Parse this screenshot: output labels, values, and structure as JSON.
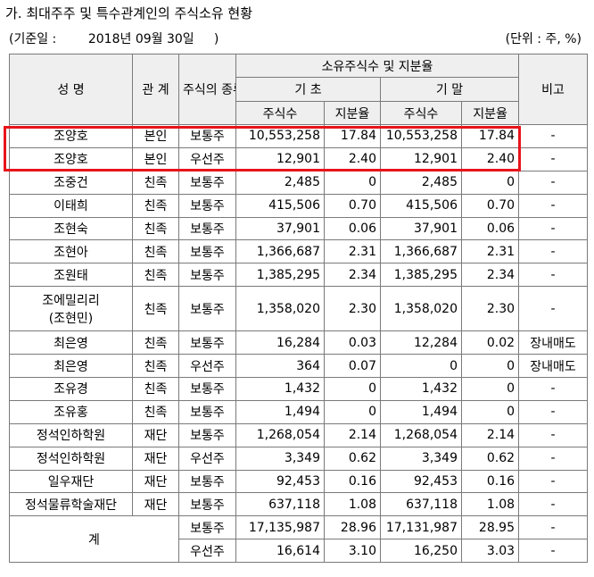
{
  "title": "가. 최대주주 및 특수관계인의 주식소유 현황",
  "base_date": "(기준일 :        2018년 09월 30일     )",
  "unit": "(단위 : 주, %)",
  "header": {
    "name": "성 명",
    "relation": "관 계",
    "stock_type": "주식의 종류",
    "ownership": "소유주식수 및 지분율",
    "begin": "기 초",
    "end": "기 말",
    "note": "비고",
    "shares": "주식수",
    "ratio": "지분율"
  },
  "rows": [
    {
      "name": "조양호",
      "relation": "본인",
      "type": "보통주",
      "begin_shares": "10,553,258",
      "begin_ratio": "17.84",
      "end_shares": "10,553,258",
      "end_ratio": "17.84",
      "note": "-"
    },
    {
      "name": "조양호",
      "relation": "본인",
      "type": "우선주",
      "begin_shares": "12,901",
      "begin_ratio": "2.40",
      "end_shares": "12,901",
      "end_ratio": "2.40",
      "note": "-"
    },
    {
      "name": "조중건",
      "relation": "친족",
      "type": "보통주",
      "begin_shares": "2,485",
      "begin_ratio": "0",
      "end_shares": "2,485",
      "end_ratio": "0",
      "note": "-"
    },
    {
      "name": "이태희",
      "relation": "친족",
      "type": "보통주",
      "begin_shares": "415,506",
      "begin_ratio": "0.70",
      "end_shares": "415,506",
      "end_ratio": "0.70",
      "note": "-"
    },
    {
      "name": "조현숙",
      "relation": "친족",
      "type": "보통주",
      "begin_shares": "37,901",
      "begin_ratio": "0.06",
      "end_shares": "37,901",
      "end_ratio": "0.06",
      "note": "-"
    },
    {
      "name": "조현아",
      "relation": "친족",
      "type": "보통주",
      "begin_shares": "1,366,687",
      "begin_ratio": "2.31",
      "end_shares": "1,366,687",
      "end_ratio": "2.31",
      "note": "-"
    },
    {
      "name": "조원태",
      "relation": "친족",
      "type": "보통주",
      "begin_shares": "1,385,295",
      "begin_ratio": "2.34",
      "end_shares": "1,385,295",
      "end_ratio": "2.34",
      "note": "-"
    },
    {
      "name": "조에밀리리",
      "name2": "(조현민)",
      "relation": "친족",
      "type": "보통주",
      "begin_shares": "1,358,020",
      "begin_ratio": "2.30",
      "end_shares": "1,358,020",
      "end_ratio": "2.30",
      "note": "-"
    },
    {
      "name": "최은영",
      "relation": "친족",
      "type": "보통주",
      "begin_shares": "16,284",
      "begin_ratio": "0.03",
      "end_shares": "12,284",
      "end_ratio": "0.02",
      "note": "장내매도"
    },
    {
      "name": "최은영",
      "relation": "친족",
      "type": "우선주",
      "begin_shares": "364",
      "begin_ratio": "0.07",
      "end_shares": "0",
      "end_ratio": "0",
      "note": "장내매도"
    },
    {
      "name": "조유경",
      "relation": "친족",
      "type": "보통주",
      "begin_shares": "1,432",
      "begin_ratio": "0",
      "end_shares": "1,432",
      "end_ratio": "0",
      "note": "-"
    },
    {
      "name": "조유홍",
      "relation": "친족",
      "type": "보통주",
      "begin_shares": "1,494",
      "begin_ratio": "0",
      "end_shares": "1,494",
      "end_ratio": "0",
      "note": "-"
    },
    {
      "name": "정석인하학원",
      "relation": "재단",
      "type": "보통주",
      "begin_shares": "1,268,054",
      "begin_ratio": "2.14",
      "end_shares": "1,268,054",
      "end_ratio": "2.14",
      "note": "-"
    },
    {
      "name": "정석인하학원",
      "relation": "재단",
      "type": "우선주",
      "begin_shares": "3,349",
      "begin_ratio": "0.62",
      "end_shares": "3,349",
      "end_ratio": "0.62",
      "note": "-"
    },
    {
      "name": "일우재단",
      "relation": "재단",
      "type": "보통주",
      "begin_shares": "92,453",
      "begin_ratio": "0.16",
      "end_shares": "92,453",
      "end_ratio": "0.16",
      "note": "-"
    },
    {
      "name": "정석물류학술재단",
      "relation": "재단",
      "type": "보통주",
      "begin_shares": "637,118",
      "begin_ratio": "1.08",
      "end_shares": "637,118",
      "end_ratio": "1.08",
      "note": "-"
    }
  ],
  "total": {
    "label": "계",
    "rows": [
      {
        "type": "보통주",
        "begin_shares": "17,135,987",
        "begin_ratio": "28.96",
        "end_shares": "17,131,987",
        "end_ratio": "28.95",
        "note": "-"
      },
      {
        "type": "우선주",
        "begin_shares": "16,614",
        "begin_ratio": "3.10",
        "end_shares": "16,250",
        "end_ratio": "3.03",
        "note": "-"
      }
    ]
  },
  "highlight_color": "#e8141b"
}
